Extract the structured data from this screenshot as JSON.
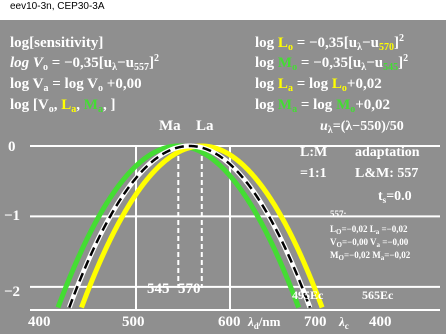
{
  "header": {
    "label": "eev10-3n, CEP30-3A"
  },
  "colors": {
    "background": "#8f8f8f",
    "L_curve": "#ffff00",
    "M_curve": "#44dd33",
    "V_curve": "#000000",
    "white": "#ffffff"
  },
  "left_text": {
    "line1": "log[sensitivity]",
    "line2a": "log V",
    "line2b": "o",
    "line2c": " = −0,35[u",
    "line2d": "λ",
    "line2e": "−u",
    "line2f": "557",
    "line2g": "]",
    "line2h": "2",
    "line3a": "log V",
    "line3b": "a",
    "line3c": " = log V",
    "line3d": "o",
    "line3e": " +0,00",
    "line4a": "log [V",
    "line4b": "o",
    "line4c": ", ",
    "line4d": "L",
    "line4e": "a",
    "line4f": ", ",
    "line4g": "M",
    "line4h": "a",
    "line4i": ", ]"
  },
  "right_text": {
    "r1a": "log ",
    "r1b": "L",
    "r1c": "o",
    "r1d": " = −0,35[u",
    "r1e": "λ",
    "r1f": "−u",
    "r1g": "570",
    "r1h": "]",
    "r1i": "2",
    "r2a": "log ",
    "r2b": "M",
    "r2c": "o",
    "r2d": " = −0,35[u",
    "r2e": "λ",
    "r2f": "−u",
    "r2g": "545",
    "r2h": "]",
    "r2i": "2",
    "r3a": "log ",
    "r3b": "L",
    "r3c": "a",
    "r3d": " = log ",
    "r3e": "L",
    "r3f": "o",
    "r3g": "+0,02",
    "r4a": "log ",
    "r4b": "M",
    "r4c": "a",
    "r4d": " = log ",
    "r4e": "M",
    "r4f": "o",
    "r4g": "+0,02",
    "r5a": "u",
    "r5b": "λ",
    "r5c": "=(λ−550)/50"
  },
  "labels": {
    "Ma": "Ma",
    "La": "La",
    "LM": "L:M",
    "ratio": "=1:1",
    "adaptation": "adaptation",
    "LandM": "L&M: 557",
    "ts": "t",
    "ts_sub": "s",
    "ts_val": "=0.0",
    "info_head": "557:",
    "info1": "L",
    "info1s": "O",
    "info1v": "=−0,02  L",
    "info1s2": "a",
    "info1v2": " =−0,02",
    "info2": "V",
    "info2s": "O",
    "info2v": "=−0,00  V",
    "info2s2": "a",
    "info2v2": " =−0,00",
    "info3": "M",
    "info3s": "O",
    "info3v": "=−0,02  M",
    "info3s2": "a",
    "info3v2": "=−0,02",
    "mark545": "545",
    "mark570": "570",
    "ec495": "495Ec",
    "ec565": "565Ec",
    "xlabel_a": "λ",
    "xlabel_as": "d",
    "xlabel_b": "/nm",
    "xlabel_c": "λ",
    "xlabel_cs": "c"
  },
  "chart_data": {
    "type": "line",
    "xlim": [
      400,
      700
    ],
    "ylim": [
      -2.3,
      0
    ],
    "x_ticks": [
      "400",
      "500",
      "600",
      "700",
      "400"
    ],
    "y_ticks": [
      "0",
      "−1",
      "−2"
    ],
    "series": [
      {
        "name": "L",
        "peak": 570,
        "offset": 0.0,
        "color": "#ffff00"
      },
      {
        "name": "M",
        "peak": 545,
        "offset": 0.0,
        "color": "#44dd33"
      },
      {
        "name": "V",
        "peak": 557,
        "offset": 0.0,
        "color": "#000000"
      }
    ],
    "formula": "log S = -0.35 * ((lambda - peak)/50)^2",
    "markers": [
      545,
      570
    ]
  }
}
